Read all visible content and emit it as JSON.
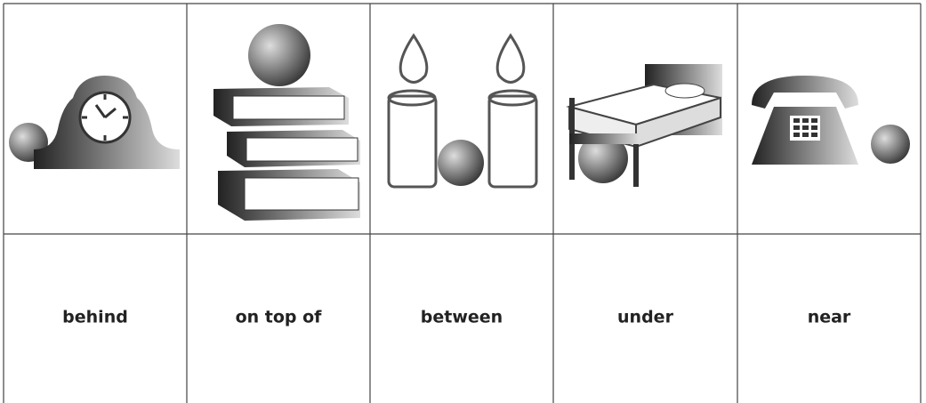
{
  "table": {
    "labels": [
      "behind",
      "on top of",
      "between",
      "under",
      "near"
    ]
  }
}
